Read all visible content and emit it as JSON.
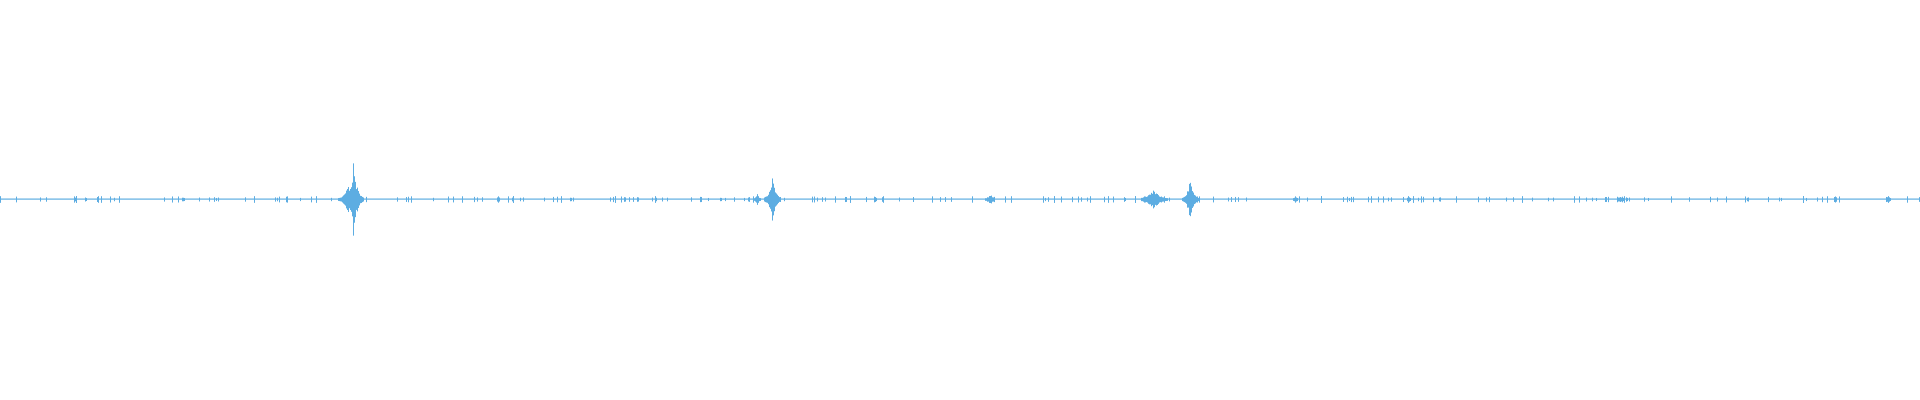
{
  "waveform": {
    "color": "#5dade2",
    "background": "#ffffff",
    "channel_count": 1
  }
}
